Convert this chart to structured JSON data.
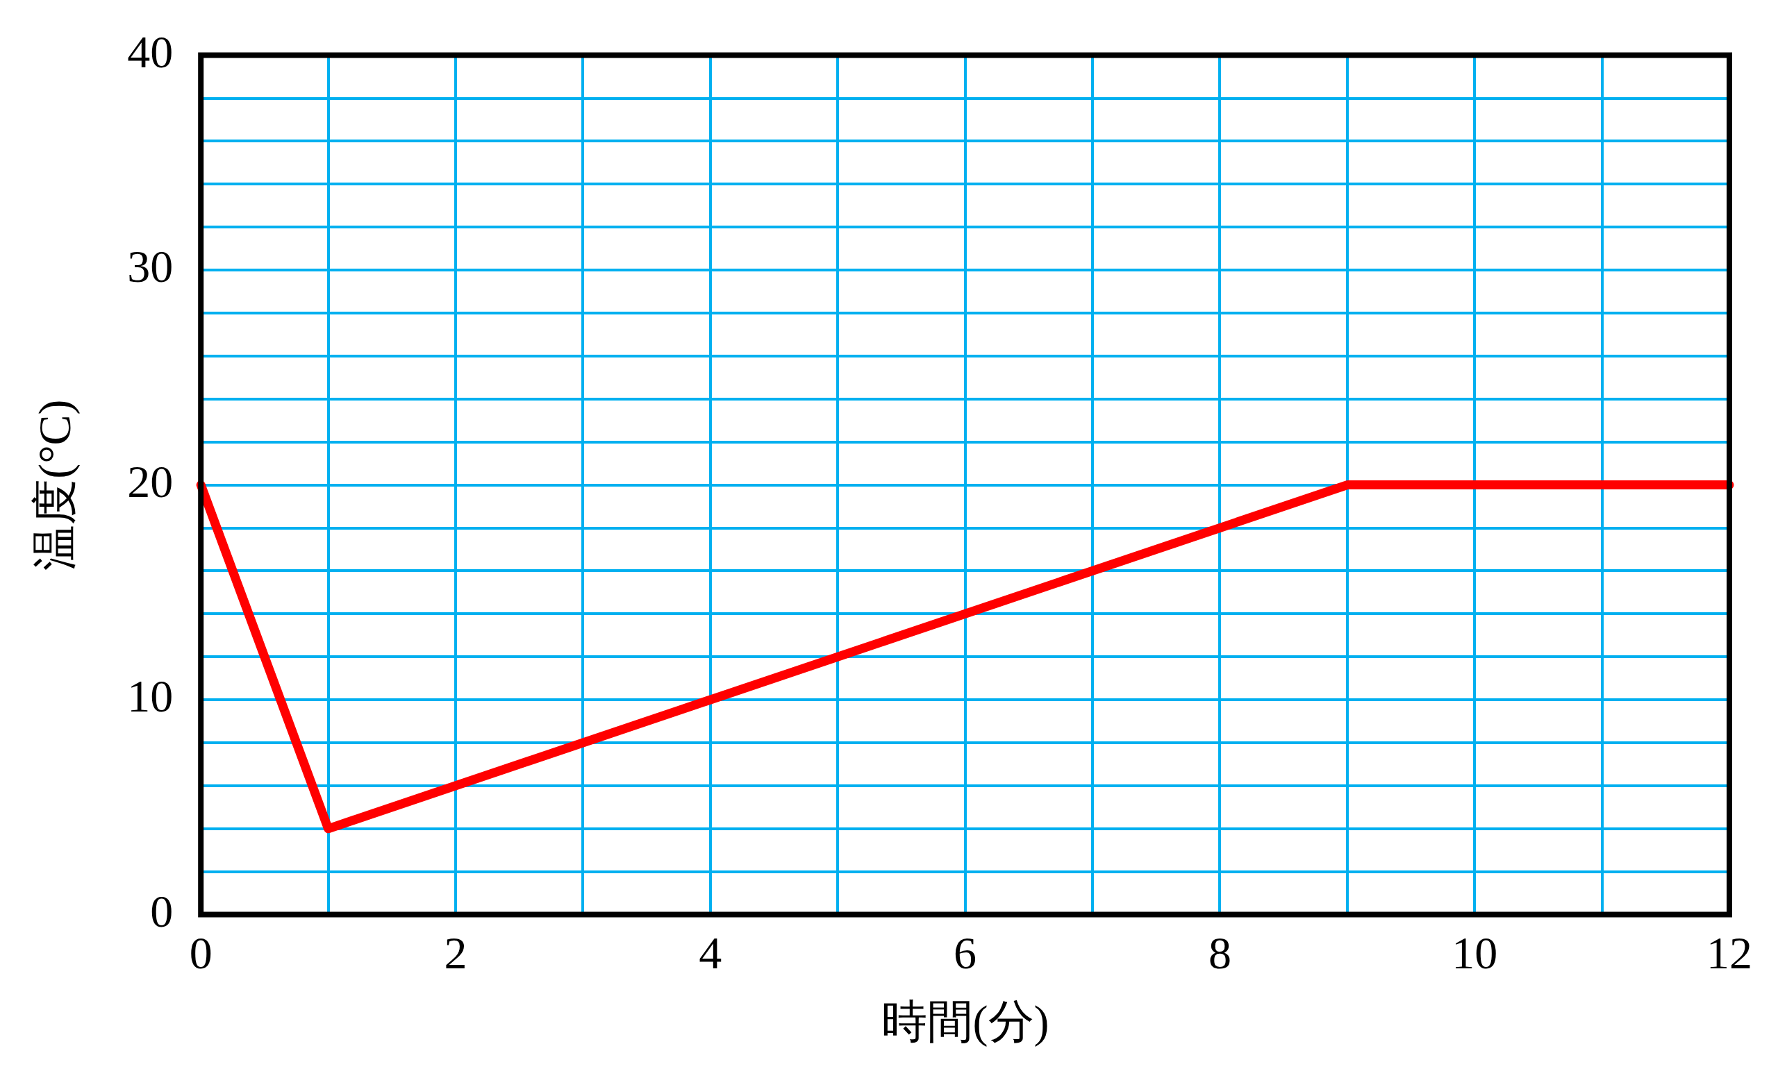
{
  "chart_data": {
    "type": "line",
    "xlabel": "時間(分)",
    "ylabel": "温度(°C)",
    "x": [
      0,
      1,
      9,
      12
    ],
    "series": [
      {
        "color": "#ff0000",
        "values": [
          20,
          4,
          20,
          20
        ]
      }
    ],
    "xlim": [
      0,
      12
    ],
    "ylim": [
      0,
      40
    ],
    "xticks": [
      0,
      {
        "value": 1,
        "label": null
      },
      2,
      {
        "value": 3,
        "label": null
      },
      4,
      {
        "value": 5,
        "label": null
      },
      6,
      {
        "value": 7,
        "label": null
      },
      8,
      {
        "value": 9,
        "label": null
      },
      10,
      {
        "value": 11,
        "label": null
      },
      12
    ],
    "yticks": [
      0,
      {
        "value": 2,
        "label": null
      },
      {
        "value": 4,
        "label": null
      },
      {
        "value": 6,
        "label": null
      },
      {
        "value": 8,
        "label": null
      },
      10,
      {
        "value": 12,
        "label": null
      },
      {
        "value": 14,
        "label": null
      },
      {
        "value": 16,
        "label": null
      },
      {
        "value": 18,
        "label": null
      },
      20,
      {
        "value": 22,
        "label": null
      },
      {
        "value": 24,
        "label": null
      },
      {
        "value": 26,
        "label": null
      },
      {
        "value": 28,
        "label": null
      },
      30,
      {
        "value": 32,
        "label": null
      },
      {
        "value": 34,
        "label": null
      },
      {
        "value": 36,
        "label": null
      },
      {
        "value": 38,
        "label": null
      },
      40
    ],
    "grid": true,
    "marker": "none"
  }
}
